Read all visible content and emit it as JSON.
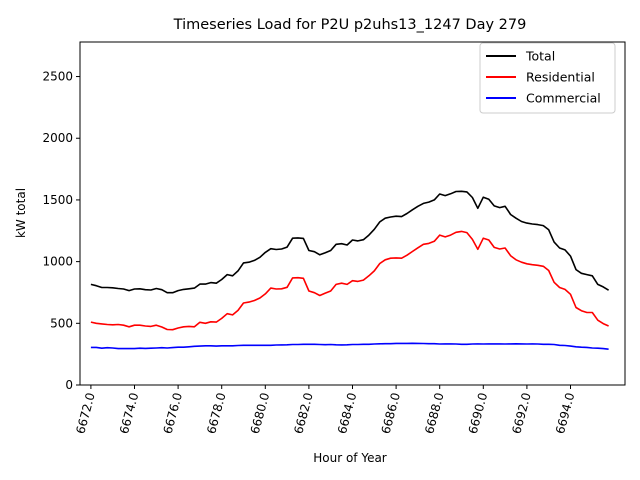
{
  "chart_data": {
    "type": "line",
    "title": "Timeseries Load for P2U p2uhs13_1247  Day 279",
    "xlabel": "Hour of Year",
    "ylabel": "kW total",
    "xlim": [
      6671.5,
      6696.5
    ],
    "ylim": [
      0,
      2780
    ],
    "xticks": [
      6672,
      6674,
      6676,
      6678,
      6680,
      6682,
      6684,
      6686,
      6688,
      6690,
      6692,
      6694
    ],
    "xtick_labels": [
      "6672.0",
      "6674.0",
      "6676.0",
      "6678.0",
      "6680.0",
      "6682.0",
      "6684.0",
      "6686.0",
      "6688.0",
      "6690.0",
      "6692.0",
      "6694.0"
    ],
    "yticks": [
      0,
      500,
      1000,
      1500,
      2000,
      2500
    ],
    "ytick_labels": [
      "0",
      "500",
      "1000",
      "1500",
      "2000",
      "2500"
    ],
    "grid": false,
    "legend_position": "upper right",
    "x": [
      6672.0,
      6672.25,
      6672.5,
      6672.75,
      6673.0,
      6673.25,
      6673.5,
      6673.75,
      6674.0,
      6674.25,
      6674.5,
      6674.75,
      6675.0,
      6675.25,
      6675.5,
      6675.75,
      6676.0,
      6676.25,
      6676.5,
      6676.75,
      6677.0,
      6677.25,
      6677.5,
      6677.75,
      6678.0,
      6678.25,
      6678.5,
      6678.75,
      6679.0,
      6679.25,
      6679.5,
      6679.75,
      6680.0,
      6680.25,
      6680.5,
      6680.75,
      6681.0,
      6681.25,
      6681.5,
      6681.75,
      6682.0,
      6682.25,
      6682.5,
      6682.75,
      6683.0,
      6683.25,
      6683.5,
      6683.75,
      6684.0,
      6684.25,
      6684.5,
      6684.75,
      6685.0,
      6685.25,
      6685.5,
      6685.75,
      6686.0,
      6686.25,
      6686.5,
      6686.75,
      6687.0,
      6687.25,
      6687.5,
      6687.75,
      6688.0,
      6688.25,
      6688.5,
      6688.75,
      6689.0,
      6689.25,
      6689.5,
      6689.75,
      6690.0,
      6690.25,
      6690.5,
      6690.75,
      6691.0,
      6691.25,
      6691.5,
      6691.75,
      6692.0,
      6692.25,
      6692.5,
      6692.75,
      6693.0,
      6693.25,
      6693.5,
      6693.75,
      6694.0,
      6694.25,
      6694.5,
      6694.75,
      6695.0,
      6695.25,
      6695.5,
      6695.75
    ],
    "series": [
      {
        "name": "Total",
        "color": "#000000",
        "values": [
          815,
          805,
          790,
          790,
          788,
          782,
          778,
          765,
          778,
          780,
          772,
          770,
          782,
          772,
          748,
          748,
          765,
          775,
          780,
          785,
          818,
          818,
          830,
          825,
          855,
          895,
          885,
          925,
          990,
          995,
          1010,
          1035,
          1075,
          1105,
          1098,
          1102,
          1118,
          1190,
          1192,
          1188,
          1090,
          1080,
          1055,
          1072,
          1090,
          1140,
          1145,
          1135,
          1175,
          1168,
          1178,
          1215,
          1262,
          1322,
          1352,
          1362,
          1368,
          1365,
          1390,
          1420,
          1448,
          1472,
          1482,
          1500,
          1548,
          1535,
          1550,
          1568,
          1570,
          1565,
          1520,
          1432,
          1522,
          1505,
          1452,
          1438,
          1448,
          1382,
          1352,
          1325,
          1312,
          1305,
          1300,
          1292,
          1258,
          1158,
          1110,
          1095,
          1045,
          935,
          905,
          895,
          885,
          815,
          795,
          768
        ]
      },
      {
        "name": "Residential",
        "color": "#ff0000",
        "values": [
          510,
          500,
          495,
          490,
          488,
          490,
          485,
          472,
          485,
          485,
          478,
          475,
          485,
          470,
          450,
          448,
          462,
          472,
          475,
          472,
          508,
          500,
          512,
          510,
          540,
          578,
          568,
          605,
          665,
          672,
          685,
          705,
          738,
          785,
          778,
          780,
          792,
          868,
          870,
          865,
          762,
          748,
          725,
          745,
          762,
          815,
          825,
          815,
          845,
          840,
          850,
          885,
          925,
          985,
          1015,
          1028,
          1030,
          1028,
          1052,
          1082,
          1112,
          1140,
          1148,
          1165,
          1215,
          1200,
          1215,
          1238,
          1245,
          1235,
          1180,
          1100,
          1190,
          1175,
          1115,
          1102,
          1110,
          1048,
          1015,
          995,
          982,
          975,
          970,
          962,
          928,
          832,
          790,
          775,
          735,
          628,
          602,
          588,
          588,
          525,
          498,
          478
        ]
      },
      {
        "name": "Commercial",
        "color": "#0000ff",
        "values": [
          305,
          305,
          298,
          302,
          300,
          295,
          296,
          295,
          295,
          298,
          297,
          298,
          300,
          302,
          300,
          303,
          306,
          306,
          310,
          314,
          315,
          318,
          318,
          315,
          318,
          318,
          318,
          320,
          322,
          322,
          322,
          322,
          322,
          322,
          324,
          325,
          326,
          328,
          328,
          330,
          330,
          330,
          328,
          327,
          328,
          326,
          325,
          326,
          328,
          328,
          330,
          330,
          332,
          334,
          335,
          335,
          337,
          337,
          337,
          338,
          337,
          336,
          335,
          335,
          332,
          333,
          333,
          332,
          330,
          330,
          332,
          333,
          332,
          333,
          333,
          333,
          332,
          333,
          334,
          333,
          332,
          333,
          332,
          330,
          330,
          328,
          322,
          320,
          315,
          310,
          306,
          305,
          300,
          298,
          295,
          290
        ]
      }
    ]
  }
}
